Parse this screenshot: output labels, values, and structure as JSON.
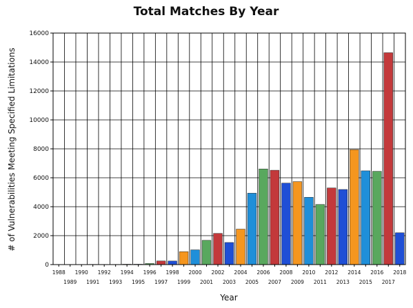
{
  "chart_data": {
    "type": "bar",
    "title": "Total Matches By Year",
    "xlabel": "Year",
    "ylabel": "# of Vulnerabilities Meeting Specified Limitations",
    "ylim": [
      0,
      16000
    ],
    "yticks": [
      0,
      2000,
      4000,
      6000,
      8000,
      10000,
      12000,
      14000,
      16000
    ],
    "grid": true,
    "categories": [
      "1988",
      "1989",
      "1990",
      "1991",
      "1992",
      "1993",
      "1994",
      "1995",
      "1996",
      "1997",
      "1998",
      "1999",
      "2000",
      "2001",
      "2002",
      "2003",
      "2004",
      "2005",
      "2006",
      "2007",
      "2008",
      "2009",
      "2010",
      "2011",
      "2012",
      "2013",
      "2014",
      "2015",
      "2016",
      "2017",
      "2018"
    ],
    "values": [
      2,
      3,
      11,
      15,
      13,
      13,
      25,
      25,
      75,
      252,
      246,
      894,
      1020,
      1677,
      2156,
      1527,
      2451,
      4935,
      6610,
      6520,
      5632,
      5736,
      4652,
      4155,
      5297,
      5191,
      7946,
      6480,
      6447,
      14643,
      2200
    ],
    "colors": {
      "blue": "#1f4fd6",
      "orange": "#f5961f",
      "sky": "#1f8fd9",
      "green": "#59a85e",
      "red": "#c3393b"
    },
    "color_cycle": [
      "blue",
      "orange",
      "sky",
      "green",
      "red"
    ]
  }
}
